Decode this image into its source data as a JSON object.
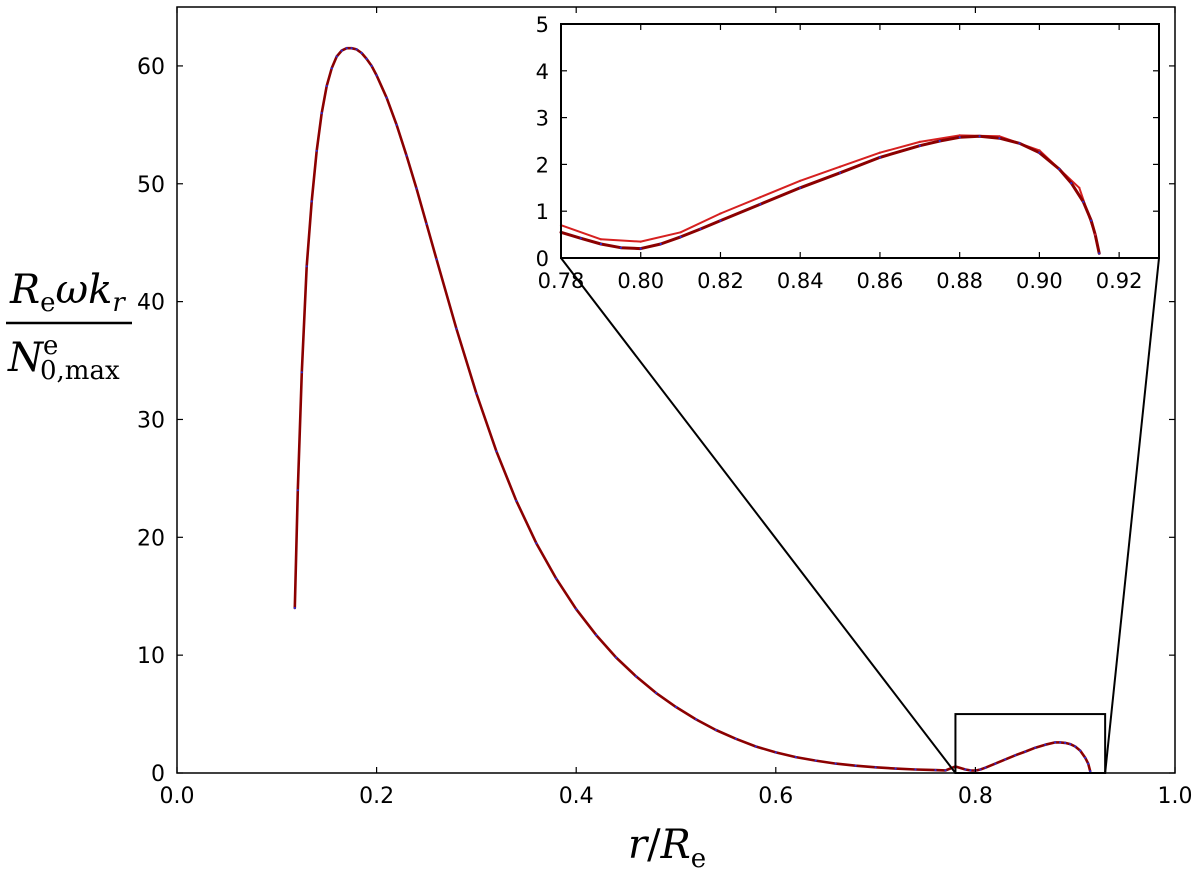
{
  "colors": {
    "curve_dark": "#8b0000",
    "curve_blue": "#2b2bd6",
    "curve_red": "#d62020",
    "axes": "#000000"
  },
  "chart_data": [
    {
      "type": "scatter",
      "title": "",
      "xlabel": {
        "var": "r",
        "slash": "/",
        "sym": "R",
        "sub": "e"
      },
      "ylabel": {
        "num_sym": "R",
        "num_sub": "e",
        "num_rest": "ωk",
        "num_rest_sub": "r",
        "den_sym": "N",
        "den_sup": "e",
        "den_sub": "0,max"
      },
      "xlim": [
        0.0,
        1.0
      ],
      "ylim": [
        0,
        65
      ],
      "x_ticks": [
        "0.0",
        "0.2",
        "0.4",
        "0.6",
        "0.8",
        "1.0"
      ],
      "y_ticks": [
        "0",
        "10",
        "20",
        "30",
        "40",
        "50",
        "60"
      ],
      "grid": false,
      "zoom_box": {
        "x": [
          0.78,
          0.93
        ],
        "y": [
          0,
          5
        ]
      },
      "series": [
        {
          "x": [
            0.118,
            0.121,
            0.125,
            0.13,
            0.135,
            0.14,
            0.145,
            0.15,
            0.155,
            0.16,
            0.165,
            0.17,
            0.175,
            0.18,
            0.185,
            0.19,
            0.195,
            0.2,
            0.21,
            0.22,
            0.23,
            0.24,
            0.25,
            0.26,
            0.28,
            0.3,
            0.32,
            0.34,
            0.36,
            0.38,
            0.4,
            0.42,
            0.44,
            0.46,
            0.48,
            0.5,
            0.52,
            0.54,
            0.56,
            0.58,
            0.6,
            0.62,
            0.64,
            0.66,
            0.68,
            0.7,
            0.72,
            0.74,
            0.76,
            0.77,
            0.78,
            0.79,
            0.795,
            0.8,
            0.805,
            0.81,
            0.82,
            0.83,
            0.84,
            0.85,
            0.86,
            0.87,
            0.88,
            0.885,
            0.89,
            0.895,
            0.9,
            0.905,
            0.91,
            0.913,
            0.915
          ],
          "y": [
            14.0,
            24.0,
            34.0,
            43.0,
            48.5,
            52.8,
            56.0,
            58.3,
            59.8,
            60.8,
            61.3,
            61.5,
            61.5,
            61.4,
            61.1,
            60.6,
            60.0,
            59.2,
            57.3,
            55.0,
            52.4,
            49.6,
            46.6,
            43.6,
            37.7,
            32.2,
            27.3,
            23.1,
            19.5,
            16.5,
            13.9,
            11.7,
            9.8,
            8.2,
            6.8,
            5.6,
            4.55,
            3.65,
            2.9,
            2.25,
            1.75,
            1.35,
            1.05,
            0.8,
            0.62,
            0.48,
            0.37,
            0.3,
            0.25,
            0.22,
            0.55,
            0.3,
            0.22,
            0.2,
            0.3,
            0.45,
            0.8,
            1.15,
            1.5,
            1.82,
            2.15,
            2.4,
            2.6,
            2.6,
            2.55,
            2.45,
            2.25,
            1.9,
            1.3,
            0.8,
            0.15
          ]
        }
      ]
    },
    {
      "type": "scatter",
      "title": "",
      "inset": true,
      "xlim": [
        0.78,
        0.93
      ],
      "ylim": [
        0,
        5
      ],
      "x_ticks": [
        "0.78",
        "0.80",
        "0.82",
        "0.84",
        "0.86",
        "0.88",
        "0.90",
        "0.92"
      ],
      "y_ticks": [
        "0",
        "1",
        "2",
        "3",
        "4",
        "5"
      ],
      "grid": false,
      "series": [
        {
          "x": [
            0.78,
            0.785,
            0.79,
            0.795,
            0.8,
            0.805,
            0.81,
            0.815,
            0.82,
            0.83,
            0.84,
            0.85,
            0.86,
            0.87,
            0.875,
            0.88,
            0.885,
            0.89,
            0.895,
            0.9,
            0.905,
            0.908,
            0.911,
            0.913,
            0.914,
            0.915
          ],
          "y": [
            0.55,
            0.42,
            0.3,
            0.22,
            0.2,
            0.3,
            0.45,
            0.62,
            0.8,
            1.15,
            1.5,
            1.82,
            2.15,
            2.4,
            2.5,
            2.58,
            2.6,
            2.56,
            2.45,
            2.25,
            1.9,
            1.6,
            1.2,
            0.8,
            0.5,
            0.1
          ]
        },
        {
          "x": [
            0.78,
            0.79,
            0.8,
            0.81,
            0.82,
            0.83,
            0.84,
            0.85,
            0.86,
            0.87,
            0.88,
            0.89,
            0.9,
            0.91,
            0.914
          ],
          "y": [
            0.7,
            0.4,
            0.35,
            0.55,
            0.95,
            1.3,
            1.65,
            1.95,
            2.25,
            2.48,
            2.62,
            2.6,
            2.3,
            1.5,
            0.5
          ]
        }
      ]
    }
  ]
}
